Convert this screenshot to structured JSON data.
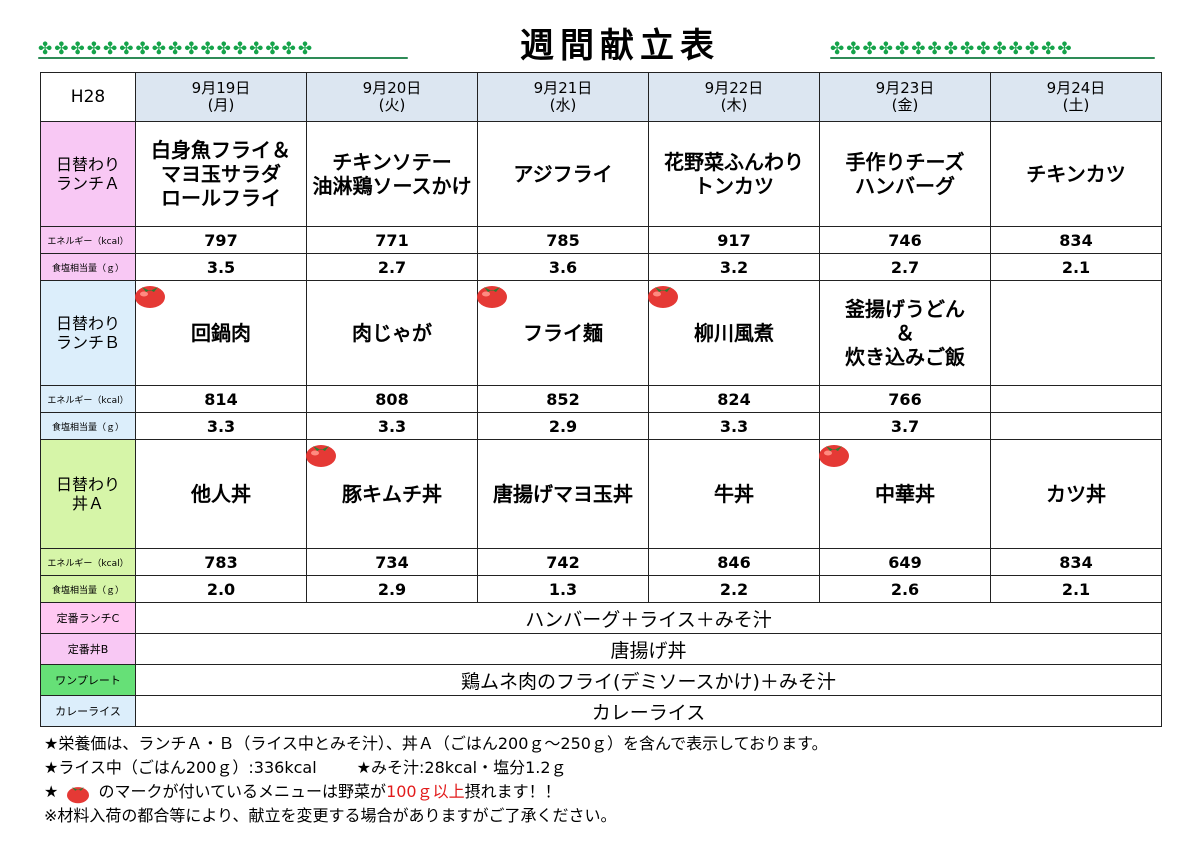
{
  "title": "週間献立表",
  "colors": {
    "header_blue": "#dce6f1",
    "lunchA": "#f8c8f4",
    "lunchB": "#dceefb",
    "donA": "#d6f5a8",
    "tomato": "#e53935"
  },
  "icons": {
    "clover": "clover-icon",
    "tomato": "tomato-icon"
  },
  "year_label": "H28",
  "days": [
    {
      "date": "9月19日",
      "weekday": "(月)"
    },
    {
      "date": "9月20日",
      "weekday": "(火)"
    },
    {
      "date": "9月21日",
      "weekday": "(水)"
    },
    {
      "date": "9月22日",
      "weekday": "(木)"
    },
    {
      "date": "9月23日",
      "weekday": "(金)"
    },
    {
      "date": "9月24日",
      "weekday": "(土)"
    }
  ],
  "labels": {
    "energy": "エネルギー（kcal）",
    "salt": "食塩相当量（ｇ）"
  },
  "lunchA": {
    "name": "日替わり\nランチＡ",
    "dishes": [
      "白身魚フライ＆\nマヨ玉サラダ\nロールフライ",
      "チキンソテー\n油淋鶏ソースかけ",
      "アジフライ",
      "花野菜ふんわり\nトンカツ",
      "手作りチーズ\nハンバーグ",
      "チキンカツ"
    ],
    "energy": [
      "797",
      "771",
      "785",
      "917",
      "746",
      "834"
    ],
    "salt": [
      "3.5",
      "2.7",
      "3.6",
      "3.2",
      "2.7",
      "2.1"
    ],
    "tomato": [
      false,
      false,
      false,
      false,
      false,
      false
    ]
  },
  "lunchB": {
    "name": "日替わり\nランチＢ",
    "dishes": [
      "回鍋肉",
      "肉じゃが",
      "フライ麺",
      "柳川風煮",
      "釜揚げうどん\n＆\n炊き込みご飯",
      ""
    ],
    "energy": [
      "814",
      "808",
      "852",
      "824",
      "766",
      ""
    ],
    "salt": [
      "3.3",
      "3.3",
      "2.9",
      "3.3",
      "3.7",
      ""
    ],
    "tomato": [
      true,
      false,
      true,
      true,
      false,
      false
    ]
  },
  "donA": {
    "name": "日替わり\n丼Ａ",
    "dishes": [
      "他人丼",
      "豚キムチ丼",
      "唐揚げマヨ玉丼",
      "牛丼",
      "中華丼",
      "カツ丼"
    ],
    "energy": [
      "783",
      "734",
      "742",
      "846",
      "649",
      "834"
    ],
    "salt": [
      "2.0",
      "2.9",
      "1.3",
      "2.2",
      "2.6",
      "2.1"
    ],
    "tomato": [
      false,
      true,
      false,
      false,
      true,
      false
    ]
  },
  "fixed": [
    {
      "label": "定番ランチC",
      "value": "ハンバーグ＋ライス＋みそ汁"
    },
    {
      "label": "定番丼B",
      "value": "唐揚げ丼"
    },
    {
      "label": "ワンプレート",
      "value": "鶏ムネ肉のフライ(デミソースかけ)＋みそ汁"
    },
    {
      "label": "カレーライス",
      "value": "カレーライス"
    }
  ],
  "notes": {
    "line1": "★栄養価は、ランチＡ・Ｂ（ライス中とみそ汁）、丼Ａ（ごはん200ｇ～250ｇ）を含んで表示しております。",
    "line2a": "★ライス中（ごはん200ｇ）:336kcal",
    "line2b": "★みそ汁:28kcal・塩分1.2ｇ",
    "line3a": "★",
    "line3b": "のマークが付いているメニューは野菜が",
    "line3red": "100ｇ以上",
    "line3c": "摂れます！！",
    "line4": "※材料入荷の都合等により、献立を変更する場合がありますがご了承ください。"
  }
}
